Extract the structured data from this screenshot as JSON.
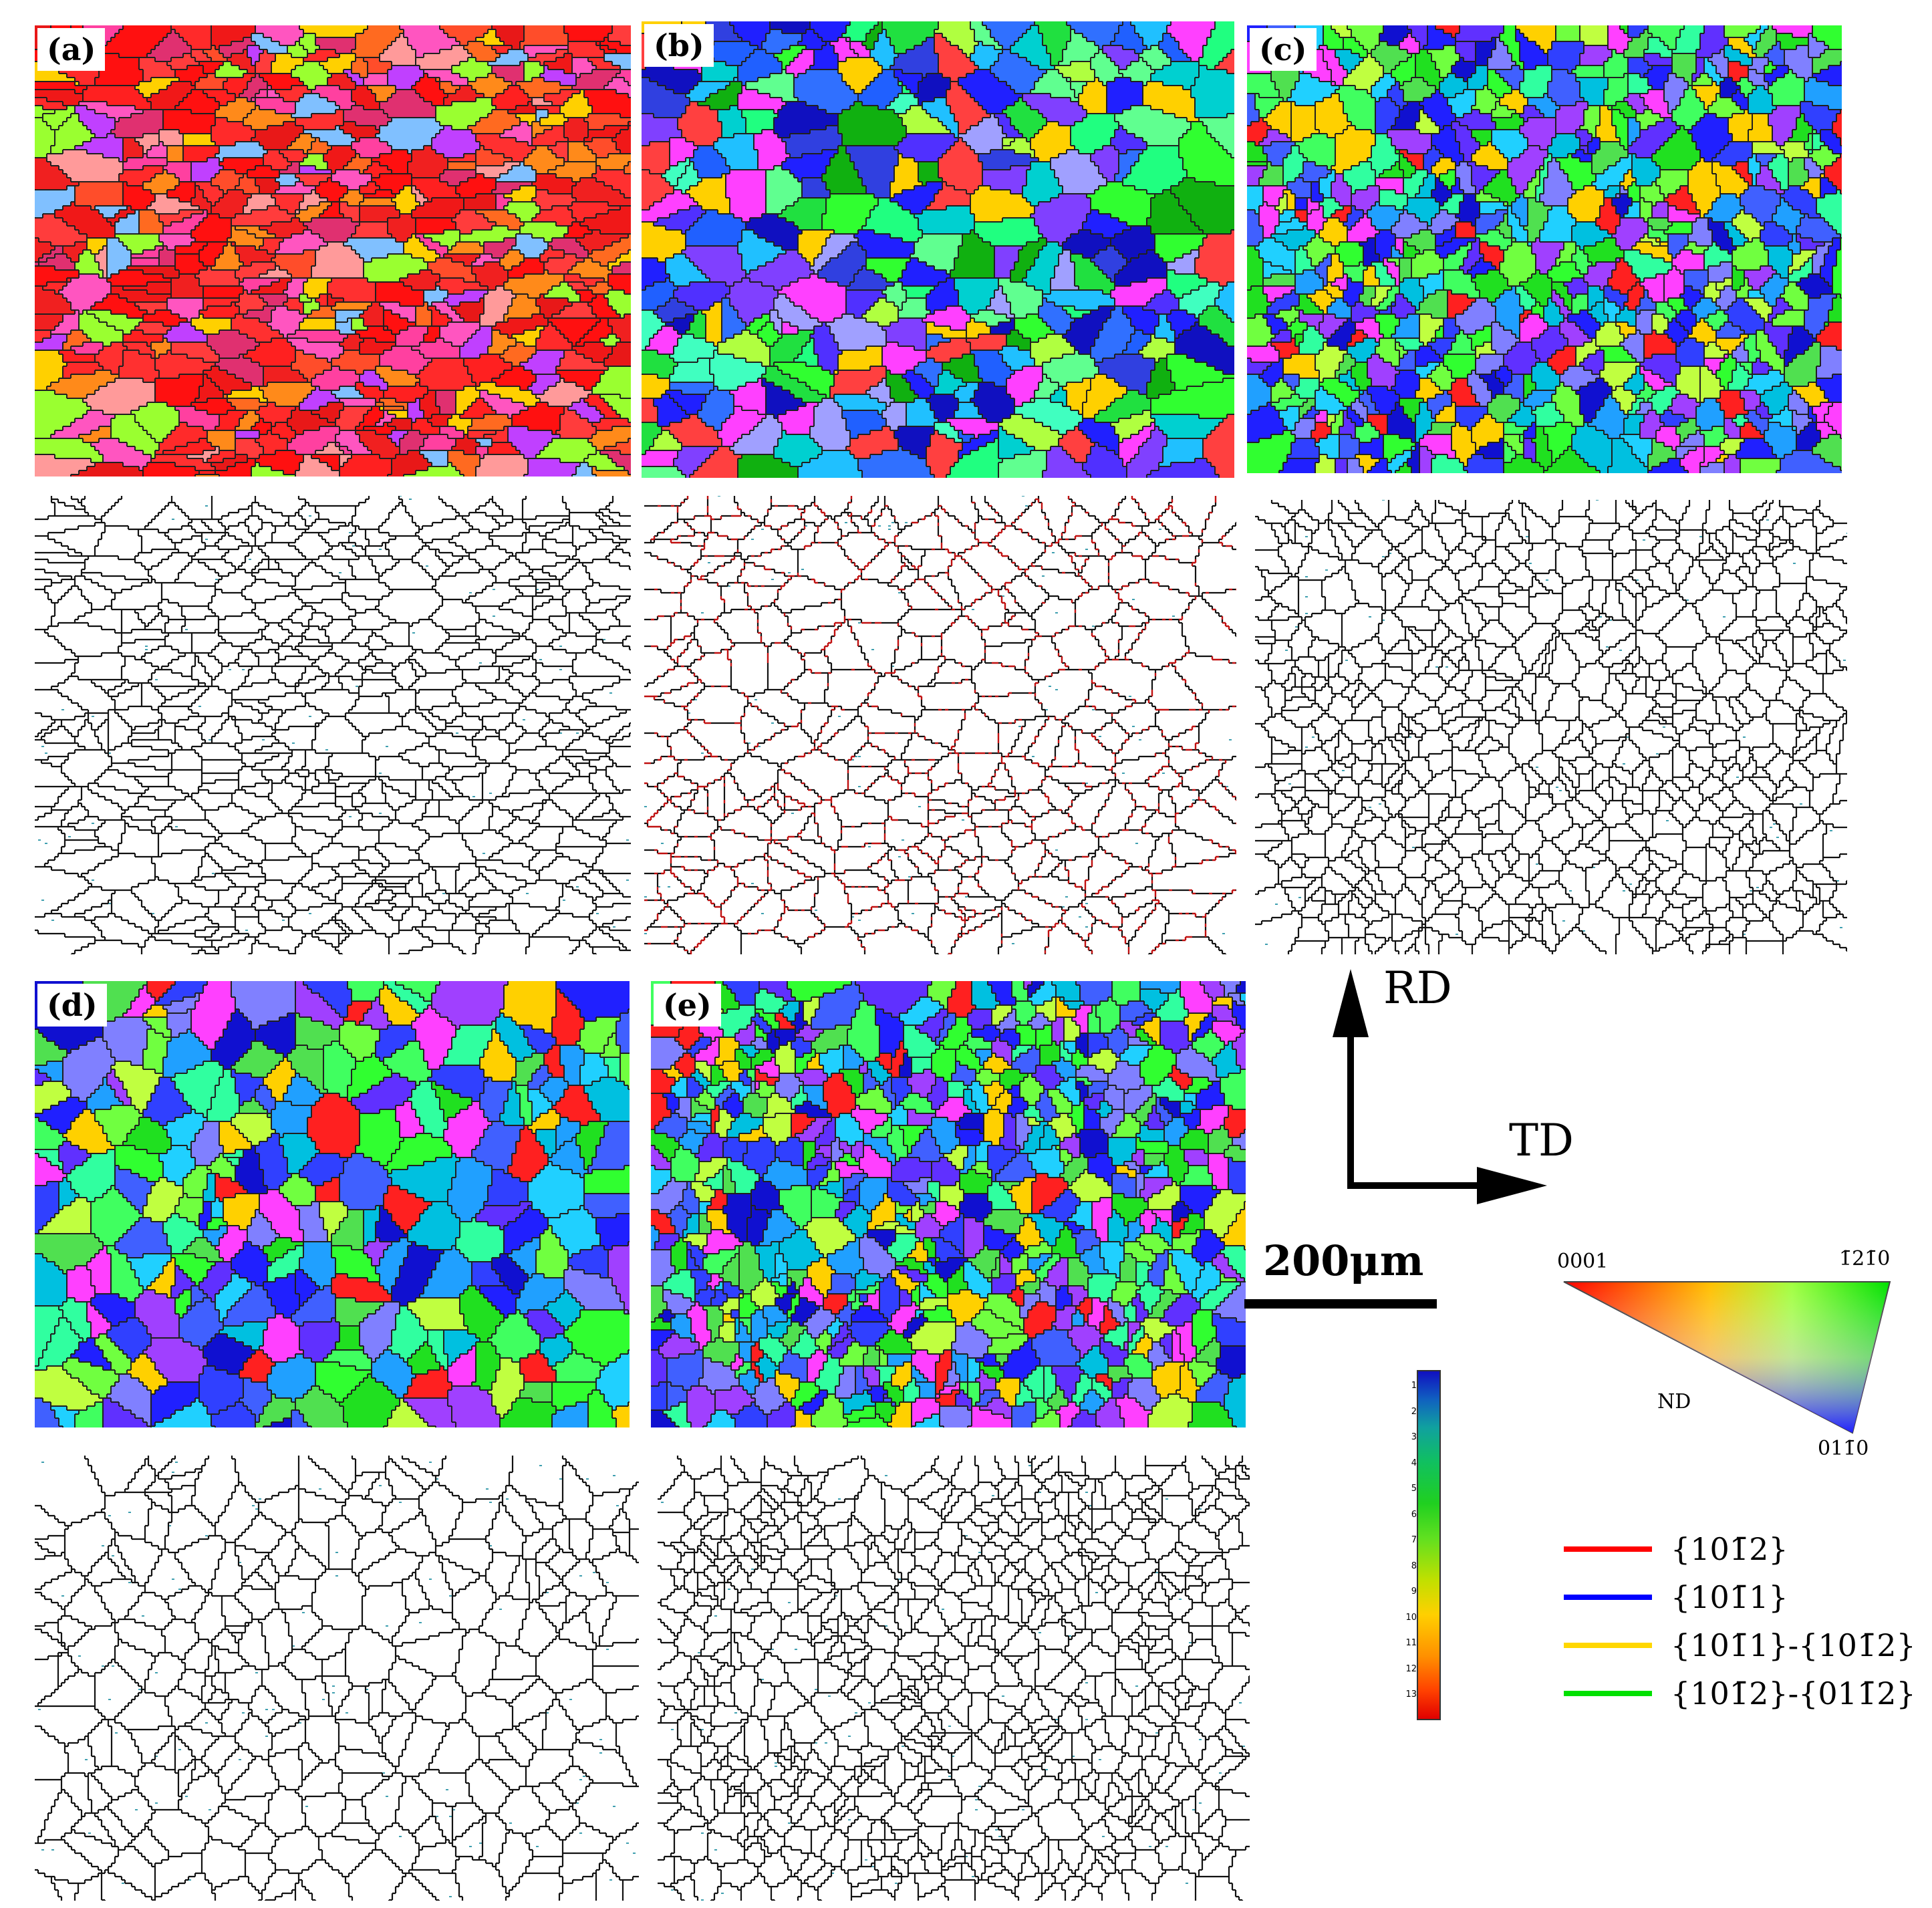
{
  "panels": [
    {
      "label": "(a)",
      "palette": "red"
    },
    {
      "label": "(b)",
      "palette": "mixed"
    },
    {
      "label": "(c)",
      "palette": "cool"
    },
    {
      "label": "(d)",
      "palette": "cool"
    },
    {
      "label": "(e)",
      "palette": "cool"
    }
  ],
  "axes": {
    "rd": "RD",
    "td": "TD"
  },
  "scale_bar": {
    "label": "200μm"
  },
  "ipf_key": {
    "corner_0001": "0001",
    "corner_1210": "1̄21̄0",
    "corner_0110": "011̄0",
    "center": "ND"
  },
  "colorbar_ticks": [
    "1",
    "2",
    "3",
    "4",
    "5",
    "6",
    "7",
    "8",
    "9",
    "10",
    "11",
    "12",
    "13"
  ],
  "legend": [
    {
      "label": "{101̄2}",
      "color": "#ff0000"
    },
    {
      "label": "{101̄1}",
      "color": "#0000ff"
    },
    {
      "label": "{101̄1}-{101̄2}",
      "color": "#ffd700"
    },
    {
      "label": "{101̄2}-{011̄2}",
      "color": "#00e000"
    }
  ]
}
